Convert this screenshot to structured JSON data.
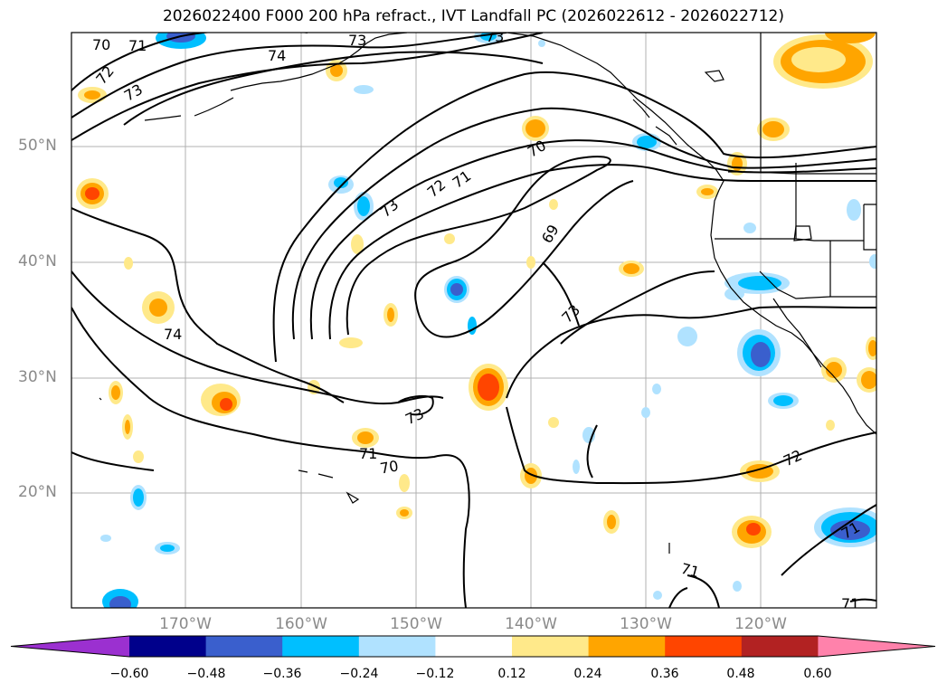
{
  "title": "2026022400 F000 200 hPa refract., IVT Landfall PC (2026022612 - 2026022712)",
  "map": {
    "lat_labels": [
      "50°N",
      "40°N",
      "30°N",
      "20°N"
    ],
    "lon_labels": [
      "170°W",
      "160°W",
      "150°W",
      "140°W",
      "130°W",
      "120°W"
    ],
    "contour_labels": [
      "70",
      "71",
      "72",
      "73",
      "74",
      "73",
      "73",
      "73",
      "72",
      "71",
      "70",
      "69",
      "73",
      "74",
      "73",
      "71",
      "70",
      "72",
      "71",
      "71",
      "71"
    ]
  },
  "colorbar": {
    "ticks": [
      "−0.60",
      "−0.48",
      "−0.36",
      "−0.24",
      "−0.12",
      "0.12",
      "0.24",
      "0.36",
      "0.48",
      "0.60"
    ],
    "colors": [
      "#9b30d0",
      "#00008b",
      "#3a5fcd",
      "#00bfff",
      "#b0e2ff",
      "#ffffff",
      "#ffe98a",
      "#ffa500",
      "#ff4500",
      "#b22222",
      "#ff82ab"
    ]
  }
}
